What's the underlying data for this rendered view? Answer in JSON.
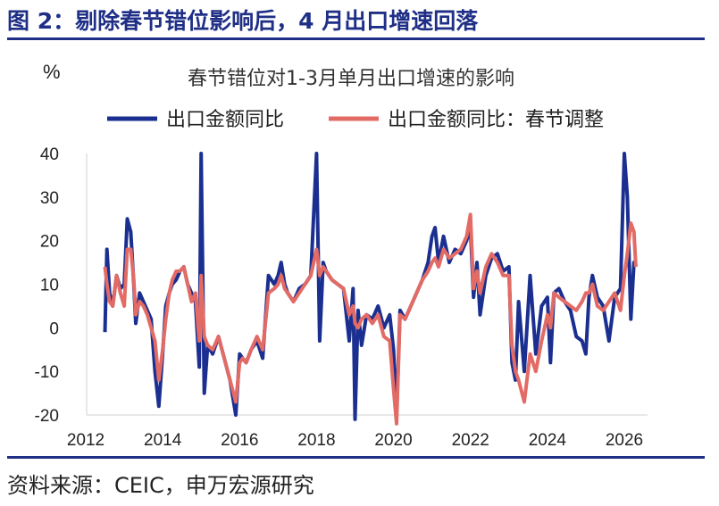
{
  "figure": {
    "title": "图 2：剔除春节错位影响后，4 月出口增速回落",
    "source": "资料来源：CEIC，申万宏源研究"
  },
  "colors": {
    "series_raw": "#1a2f8f",
    "series_adjusted": "#e36b66",
    "rule": "#1f2f86",
    "axis": "#d0d0d0"
  },
  "chart_data": {
    "type": "line",
    "title": "春节错位对1-3月单月出口增速的影响",
    "ylabel": "%",
    "ylim": [
      -20,
      40
    ],
    "xlim": [
      2012.5,
      2026.5
    ],
    "yticks": [
      -20,
      -10,
      0,
      10,
      20,
      30,
      40
    ],
    "xticks": [
      2012,
      2014,
      2016,
      2018,
      2020,
      2022,
      2024,
      2026
    ],
    "grid": false,
    "legend_position": "top",
    "series": [
      {
        "name": "出口金额同比",
        "x": [
          2012.5,
          2012.55,
          2012.62,
          2012.7,
          2012.8,
          2012.9,
          2013.0,
          2013.08,
          2013.17,
          2013.25,
          2013.3,
          2013.4,
          2013.5,
          2013.6,
          2013.7,
          2013.8,
          2013.9,
          2014.0,
          2014.08,
          2014.17,
          2014.25,
          2014.35,
          2014.45,
          2014.55,
          2014.65,
          2014.75,
          2014.85,
          2014.95,
          2015.0,
          2015.08,
          2015.17,
          2015.3,
          2015.45,
          2015.6,
          2015.75,
          2015.9,
          2016.0,
          2016.08,
          2016.17,
          2016.3,
          2016.45,
          2016.6,
          2016.75,
          2016.9,
          2017.0,
          2017.08,
          2017.17,
          2017.25,
          2017.4,
          2017.55,
          2017.7,
          2017.85,
          2018.0,
          2018.08,
          2018.17,
          2018.25,
          2018.4,
          2018.55,
          2018.7,
          2018.85,
          2018.95,
          2019.0,
          2019.08,
          2019.17,
          2019.3,
          2019.45,
          2019.6,
          2019.75,
          2019.9,
          2020.0,
          2020.08,
          2020.17,
          2020.3,
          2020.45,
          2020.6,
          2020.75,
          2020.9,
          2021.0,
          2021.08,
          2021.17,
          2021.3,
          2021.45,
          2021.6,
          2021.75,
          2021.9,
          2022.0,
          2022.08,
          2022.17,
          2022.25,
          2022.4,
          2022.55,
          2022.7,
          2022.85,
          2023.0,
          2023.08,
          2023.17,
          2023.25,
          2023.4,
          2023.55,
          2023.7,
          2023.85,
          2024.0,
          2024.08,
          2024.17,
          2024.3,
          2024.45,
          2024.6,
          2024.75,
          2024.9,
          2025.0,
          2025.08,
          2025.17,
          2025.3,
          2025.45,
          2025.6,
          2025.75,
          2025.9,
          2026.0,
          2026.08,
          2026.17,
          2026.25,
          2026.3
        ],
        "values": [
          -1,
          18,
          8,
          5,
          12,
          9,
          10,
          25,
          22,
          10,
          1,
          8,
          6,
          4,
          2,
          -10,
          -18,
          -6,
          5,
          8,
          10,
          11,
          13,
          14,
          10,
          8,
          6,
          -9,
          40,
          -15,
          -4,
          -6,
          -2,
          -7,
          -12,
          -20,
          -6,
          -7,
          -8,
          -5,
          -3,
          -7,
          12,
          10,
          12,
          15,
          10,
          8,
          6,
          9,
          10,
          12,
          40,
          -3,
          15,
          13,
          11,
          10,
          9,
          -3,
          9,
          -21,
          4,
          -4,
          3,
          2,
          5,
          0,
          3,
          -5,
          -20,
          4,
          2,
          5,
          8,
          11,
          15,
          21,
          23,
          15,
          21,
          15,
          18,
          17,
          20,
          23,
          7,
          15,
          3,
          12,
          16,
          17,
          13,
          14,
          -8,
          -12,
          6,
          -10,
          12,
          -6,
          5,
          7,
          -8,
          8,
          9,
          6,
          4,
          -2,
          -3,
          -6,
          7,
          12,
          7,
          5,
          -3,
          7,
          9,
          40,
          30,
          2,
          15,
          14
        ],
        "color": "#1a2f8f"
      },
      {
        "name": "出口金额同比：春节调整",
        "x": [
          2012.5,
          2012.55,
          2012.62,
          2012.7,
          2012.8,
          2012.9,
          2013.0,
          2013.08,
          2013.17,
          2013.25,
          2013.3,
          2013.4,
          2013.5,
          2013.6,
          2013.7,
          2013.8,
          2013.9,
          2014.0,
          2014.08,
          2014.17,
          2014.25,
          2014.35,
          2014.45,
          2014.55,
          2014.65,
          2014.75,
          2014.85,
          2014.95,
          2015.0,
          2015.08,
          2015.17,
          2015.3,
          2015.45,
          2015.6,
          2015.75,
          2015.9,
          2016.0,
          2016.08,
          2016.17,
          2016.3,
          2016.45,
          2016.6,
          2016.75,
          2016.9,
          2017.0,
          2017.08,
          2017.17,
          2017.25,
          2017.4,
          2017.55,
          2017.7,
          2017.85,
          2018.0,
          2018.08,
          2018.17,
          2018.25,
          2018.4,
          2018.55,
          2018.7,
          2018.85,
          2018.95,
          2019.0,
          2019.08,
          2019.17,
          2019.3,
          2019.45,
          2019.6,
          2019.75,
          2019.9,
          2020.0,
          2020.08,
          2020.17,
          2020.3,
          2020.45,
          2020.6,
          2020.75,
          2020.9,
          2021.0,
          2021.08,
          2021.17,
          2021.3,
          2021.45,
          2021.6,
          2021.75,
          2021.9,
          2022.0,
          2022.08,
          2022.17,
          2022.25,
          2022.4,
          2022.55,
          2022.7,
          2022.85,
          2023.0,
          2023.08,
          2023.17,
          2023.25,
          2023.4,
          2023.55,
          2023.7,
          2023.85,
          2024.0,
          2024.08,
          2024.17,
          2024.3,
          2024.45,
          2024.6,
          2024.75,
          2024.9,
          2025.0,
          2025.08,
          2025.17,
          2025.3,
          2025.45,
          2025.6,
          2025.75,
          2025.9,
          2026.0,
          2026.08,
          2026.17,
          2026.25,
          2026.3
        ],
        "values": [
          14,
          10,
          6,
          5,
          12,
          8,
          5,
          18,
          18,
          11,
          3,
          6,
          5,
          3,
          0,
          -3,
          -12,
          -5,
          2,
          8,
          11,
          13,
          13,
          14,
          10,
          6,
          8,
          -3,
          12,
          -2,
          -4,
          -5,
          -2,
          -7,
          -12,
          -17,
          -8,
          -7,
          -8,
          -5,
          -2,
          -5,
          8,
          9,
          10,
          12,
          9,
          8,
          6,
          8,
          10,
          12,
          18,
          12,
          14,
          13,
          11,
          10,
          9,
          3,
          5,
          1,
          0,
          2,
          3,
          1,
          3,
          -2,
          -3,
          -14,
          -22,
          3,
          2,
          5,
          8,
          11,
          13,
          15,
          16,
          14,
          18,
          16,
          17,
          18,
          21,
          26,
          9,
          13,
          8,
          14,
          17,
          15,
          12,
          12,
          -4,
          -10,
          -12,
          -17,
          -6,
          -10,
          -3,
          3,
          0,
          8,
          7,
          6,
          5,
          4,
          6,
          8,
          8,
          10,
          5,
          4,
          6,
          8,
          4,
          12,
          17,
          24,
          22,
          14
        ],
        "color": "#e36b66"
      }
    ]
  }
}
